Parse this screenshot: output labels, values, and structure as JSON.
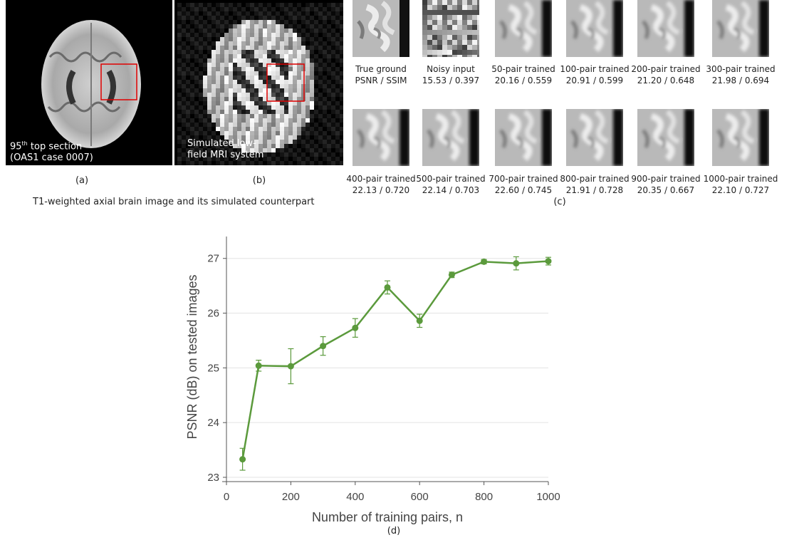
{
  "panel_a": {
    "overlay_line1_prefix": "95",
    "overlay_line1_sup": "th",
    "overlay_line1_suffix": " top section",
    "overlay_line2": "(OAS1 case 0007)",
    "label": "(a)"
  },
  "panel_b": {
    "overlay_line1": "Simulated low-",
    "overlay_line2": "field MRI system",
    "label": "(b)"
  },
  "ab_caption": "T1-weighted axial brain image and its simulated counterpart",
  "panel_c": {
    "label": "(c)",
    "row1": [
      {
        "name": "True ground",
        "metric": "PSNR / SSIM"
      },
      {
        "name": "Noisy input",
        "metric": "15.53 / 0.397"
      },
      {
        "name": "50-pair trained",
        "metric": "20.16 / 0.559"
      },
      {
        "name": "100-pair trained",
        "metric": "20.91 / 0.599"
      },
      {
        "name": "200-pair trained",
        "metric": "21.20 / 0.648"
      },
      {
        "name": "300-pair trained",
        "metric": "21.98 / 0.694"
      }
    ],
    "row2": [
      {
        "name": "400-pair trained",
        "metric": "22.13 / 0.720"
      },
      {
        "name": "500-pair trained",
        "metric": "22.14 / 0.703"
      },
      {
        "name": "700-pair trained",
        "metric": "22.60 / 0.745"
      },
      {
        "name": "800-pair trained",
        "metric": "21.91 / 0.728"
      },
      {
        "name": "900-pair trained",
        "metric": "20.35 / 0.667"
      },
      {
        "name": "1000-pair trained",
        "metric": "22.10 / 0.727"
      }
    ]
  },
  "panel_d_label": "(d)",
  "chart_data": {
    "type": "line",
    "title": "",
    "xlabel": "Number of training pairs, n",
    "ylabel": "PSNR (dB) on tested images",
    "xlim": [
      0,
      1000
    ],
    "ylim": [
      23,
      27.4
    ],
    "xticks": [
      "0",
      "200",
      "400",
      "600",
      "800",
      "1000"
    ],
    "yticks": [
      "23",
      "24",
      "25",
      "26",
      "27"
    ],
    "grid": "horizontal",
    "color": "#5b9a3c",
    "series": [
      {
        "x": [
          50,
          100,
          200,
          300,
          400,
          500,
          600,
          700,
          800,
          900,
          1000
        ],
        "y": [
          23.33,
          25.04,
          25.03,
          25.4,
          25.73,
          26.47,
          25.86,
          26.7,
          26.94,
          26.91,
          26.95
        ],
        "err": [
          0.2,
          0.1,
          0.32,
          0.17,
          0.17,
          0.12,
          0.12,
          0.05,
          0.04,
          0.12,
          0.07
        ]
      }
    ]
  }
}
